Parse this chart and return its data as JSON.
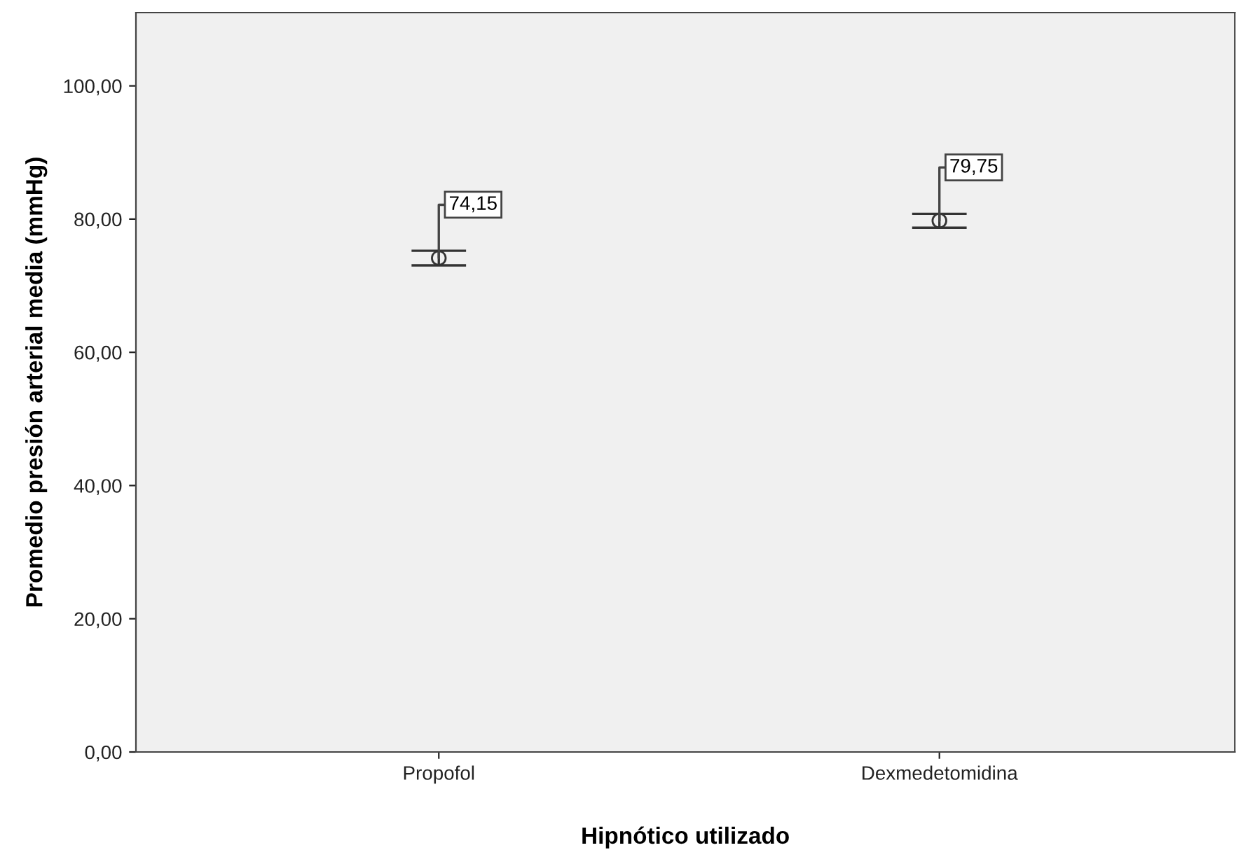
{
  "chart_data": {
    "type": "scatter",
    "xlabel": "Hipnótico utilizado",
    "ylabel": "Promedio presión arterial media (mmHg)",
    "categories": [
      "Propofol",
      "Dexmedetomidina"
    ],
    "series": [
      {
        "color": "#333333",
        "values": [
          74.15,
          79.75
        ],
        "errors": [
          [
            73.05,
            75.25
          ],
          [
            78.7,
            80.8
          ]
        ],
        "value_labels": [
          "74,15",
          "79,75"
        ]
      }
    ],
    "marker": "circle",
    "grid": false,
    "legend": false,
    "ylim": [
      0,
      111
    ],
    "yticks": [
      {
        "value": 0,
        "label": "0,00"
      },
      {
        "value": 20,
        "label": "20,00"
      },
      {
        "value": 40,
        "label": "40,00"
      },
      {
        "value": 60,
        "label": "60,00"
      },
      {
        "value": 80,
        "label": "80,00"
      },
      {
        "value": 100,
        "label": "100,00"
      }
    ]
  }
}
